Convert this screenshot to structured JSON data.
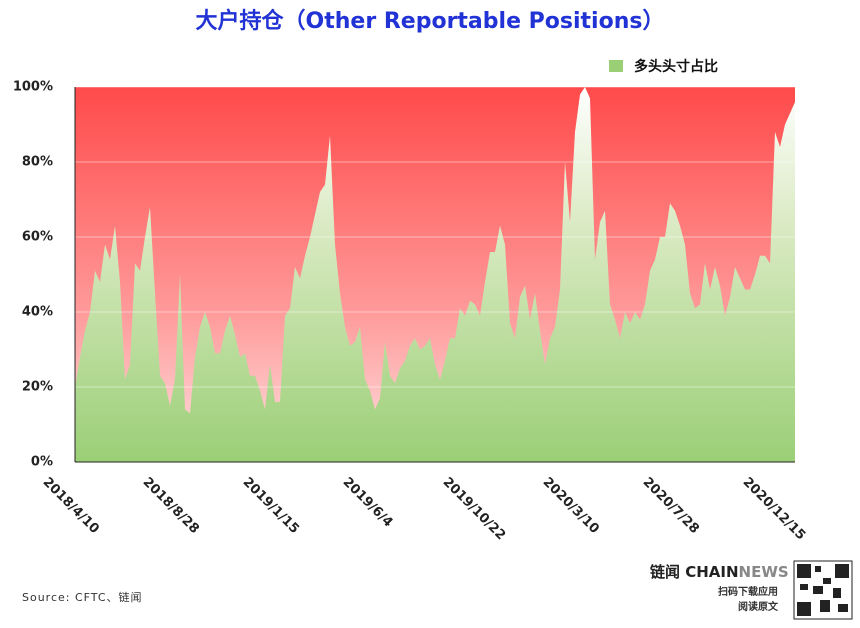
{
  "chart_data": {
    "type": "area",
    "title": "大户持仓（Other Reportable Positions）",
    "categories": [
      "2018/4/10",
      null,
      null,
      null,
      null,
      null,
      null,
      null,
      null,
      null,
      null,
      null,
      null,
      null,
      null,
      null,
      null,
      null,
      null,
      null,
      "2018/8/28",
      null,
      null,
      null,
      null,
      null,
      null,
      null,
      null,
      null,
      null,
      null,
      null,
      null,
      null,
      null,
      null,
      null,
      null,
      null,
      "2019/1/15",
      null,
      null,
      null,
      null,
      null,
      null,
      null,
      null,
      null,
      null,
      null,
      null,
      null,
      null,
      null,
      null,
      null,
      null,
      null,
      "2019/6/4",
      null,
      null,
      null,
      null,
      null,
      null,
      null,
      null,
      null,
      null,
      null,
      null,
      null,
      null,
      null,
      null,
      null,
      null,
      null,
      "2019/10/22",
      null,
      null,
      null,
      null,
      null,
      null,
      null,
      null,
      null,
      null,
      null,
      null,
      null,
      null,
      null,
      null,
      null,
      null,
      null,
      "2020/3/10",
      null,
      null,
      null,
      null,
      null,
      null,
      null,
      null,
      null,
      null,
      null,
      null,
      null,
      null,
      null,
      null,
      null,
      null,
      null,
      "2020/7/28",
      null,
      null,
      null,
      null,
      null,
      null,
      null,
      null,
      null,
      null,
      null,
      null,
      null,
      null,
      null,
      null,
      null,
      null,
      null,
      "2020/12/15",
      null,
      null,
      null,
      null
    ],
    "series": [
      {
        "name": "多头头寸占比",
        "color": "#9bcf76",
        "values": [
          20,
          28,
          35,
          40,
          51,
          48,
          58,
          54,
          63,
          48,
          22,
          26,
          53,
          51,
          60,
          68,
          45,
          23,
          21,
          15,
          22,
          50,
          14,
          13,
          28,
          36,
          40,
          36,
          29,
          29,
          35,
          39,
          34,
          28,
          29,
          23,
          23,
          19,
          14,
          26,
          16,
          16,
          39,
          41,
          52,
          49,
          55,
          60,
          66,
          72,
          74,
          87,
          58,
          45,
          36,
          31,
          32,
          36,
          22,
          19,
          14,
          17,
          32,
          23,
          21,
          25,
          27,
          31,
          33,
          30,
          31,
          33,
          26,
          22,
          27,
          33,
          33,
          41,
          39,
          43,
          42,
          39,
          48,
          56,
          56,
          63,
          58,
          37,
          33,
          44,
          47,
          38,
          45,
          35,
          26,
          33,
          36,
          46,
          80,
          64,
          88,
          98,
          100,
          97,
          54,
          64,
          67,
          42,
          38,
          33,
          40,
          37,
          40,
          38,
          42,
          51,
          54,
          60,
          60,
          69,
          67,
          63,
          58,
          45,
          41,
          42,
          53,
          46,
          52,
          47,
          39,
          44,
          52,
          49,
          46,
          46,
          50,
          55,
          55,
          53,
          88,
          84,
          90,
          93,
          96
        ]
      }
    ],
    "ylim": [
      0,
      100
    ],
    "yticks": [
      {
        "value": 0,
        "label": "0%"
      },
      {
        "value": 20,
        "label": "20%"
      },
      {
        "value": 40,
        "label": "40%"
      },
      {
        "value": 60,
        "label": "60%"
      },
      {
        "value": 80,
        "label": "80%"
      },
      {
        "value": 100,
        "label": "100%"
      }
    ],
    "grid": true,
    "legend": "top-right"
  },
  "footer": {
    "source": "Source: CFTC、链闻",
    "brand_a": "链闻 CHAIN",
    "brand_b": "NEWS",
    "download": "扫码下载应用",
    "read": "阅读原文"
  }
}
